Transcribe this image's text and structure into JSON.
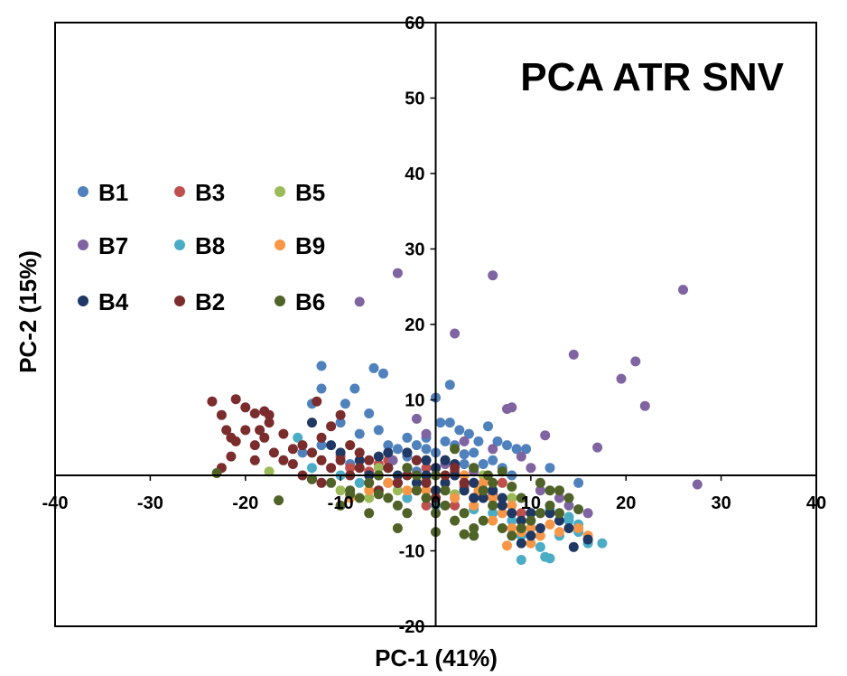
{
  "chart_data": {
    "type": "scatter",
    "title": "PCA ATR SNV",
    "xlabel": "PC-1 (41%)",
    "ylabel": "PC-2 (15%)",
    "xlim": [
      -40,
      40
    ],
    "ylim": [
      -20,
      60
    ],
    "xticks": [
      "-40",
      "-30",
      "-20",
      "-10",
      "0",
      "10",
      "20",
      "30",
      "40"
    ],
    "yticks": [
      "-20",
      "-10",
      "0",
      "10",
      "20",
      "30",
      "40",
      "50",
      "60"
    ],
    "grid": false,
    "legend_position": "left",
    "series": [
      {
        "name": "B1",
        "color": "#4f81bd",
        "points": [
          [
            -12,
            14.5
          ],
          [
            -9.5,
            9.5
          ],
          [
            -8.5,
            11.5
          ],
          [
            -6.5,
            14.2
          ],
          [
            -5.5,
            13.5
          ],
          [
            -7,
            8.2
          ],
          [
            -12,
            11.5
          ],
          [
            -13,
            9.5
          ],
          [
            -10,
            7
          ],
          [
            -8,
            5.5
          ],
          [
            -6,
            6
          ],
          [
            -5,
            4
          ],
          [
            -4,
            3.5
          ],
          [
            -3,
            5
          ],
          [
            -2,
            4
          ],
          [
            -1,
            3.5
          ],
          [
            0,
            10.3
          ],
          [
            1.5,
            12
          ],
          [
            0.5,
            7
          ],
          [
            1.5,
            7
          ],
          [
            2.5,
            6
          ],
          [
            3.5,
            5.5
          ],
          [
            4.5,
            4.5
          ],
          [
            5.5,
            6.5
          ],
          [
            6.5,
            4.5
          ],
          [
            7.5,
            4
          ],
          [
            8.5,
            3.5
          ],
          [
            9.5,
            3.5
          ],
          [
            -3,
            2.5
          ],
          [
            -1,
            2
          ],
          [
            1,
            2
          ],
          [
            3,
            1.5
          ],
          [
            5,
            1.5
          ],
          [
            7,
            1
          ],
          [
            12,
            1
          ],
          [
            8,
            0
          ],
          [
            15,
            -1
          ],
          [
            -12,
            4
          ],
          [
            -14,
            3
          ],
          [
            -9,
            1.5
          ],
          [
            -7,
            0
          ],
          [
            -5,
            -1
          ],
          [
            -2,
            0.5
          ],
          [
            0,
            3
          ],
          [
            2,
            4
          ],
          [
            4,
            3
          ],
          [
            6,
            2
          ],
          [
            -1,
            5
          ],
          [
            1,
            4.5
          ],
          [
            3,
            2.8
          ]
        ]
      },
      {
        "name": "B3",
        "color": "#c0504d",
        "points": [
          [
            -10,
            2.5
          ],
          [
            -9,
            1
          ],
          [
            -7,
            0.5
          ],
          [
            -5,
            2
          ],
          [
            -4,
            -1
          ],
          [
            -2,
            -2
          ],
          [
            -1,
            1
          ],
          [
            0,
            -2
          ],
          [
            1,
            -1
          ],
          [
            2,
            0.5
          ],
          [
            3,
            -1.5
          ],
          [
            4,
            -3
          ],
          [
            5,
            -2
          ],
          [
            6,
            -4
          ],
          [
            7,
            -1
          ],
          [
            8,
            -3
          ],
          [
            9,
            -5
          ],
          [
            -1,
            -4
          ],
          [
            -3,
            -3
          ],
          [
            1,
            2
          ],
          [
            -6,
            1.5
          ],
          [
            4,
            1
          ],
          [
            6,
            -2.5
          ],
          [
            2,
            -4
          ]
        ]
      },
      {
        "name": "B5",
        "color": "#9bbb59",
        "points": [
          [
            -17.5,
            0.5
          ],
          [
            -13,
            3
          ],
          [
            -12,
            2
          ],
          [
            -9,
            4
          ],
          [
            -8,
            3
          ],
          [
            -6,
            1
          ],
          [
            -4,
            -2
          ],
          [
            -2,
            -1
          ],
          [
            0,
            -3
          ],
          [
            1,
            -2
          ],
          [
            3,
            -1
          ],
          [
            5,
            0
          ],
          [
            6,
            -2
          ],
          [
            8,
            -3
          ],
          [
            -10,
            -2
          ],
          [
            -7,
            -3
          ],
          [
            -1,
            -0.5
          ],
          [
            2,
            -2.5
          ]
        ]
      },
      {
        "name": "B7",
        "color": "#8064a2",
        "points": [
          [
            -8,
            23
          ],
          [
            -4,
            26.8
          ],
          [
            2,
            18.8
          ],
          [
            6,
            26.5
          ],
          [
            26,
            24.6
          ],
          [
            21,
            15.1
          ],
          [
            14.5,
            16
          ],
          [
            19.5,
            12.8
          ],
          [
            22,
            9.2
          ],
          [
            17,
            3.7
          ],
          [
            11.5,
            5.3
          ],
          [
            8,
            9
          ],
          [
            7.5,
            8.8
          ],
          [
            3,
            4.5
          ],
          [
            -2,
            7.5
          ],
          [
            -1,
            5.5
          ],
          [
            27.5,
            -1.2
          ],
          [
            13,
            -3
          ],
          [
            10,
            1
          ],
          [
            1,
            1.5
          ],
          [
            -3,
            3
          ],
          [
            -4.5,
            2
          ],
          [
            6,
            3.5
          ],
          [
            9,
            2.5
          ],
          [
            11,
            -2
          ],
          [
            14,
            -4
          ],
          [
            16,
            -5
          ],
          [
            4,
            0.5
          ]
        ]
      },
      {
        "name": "B8",
        "color": "#4bacc6",
        "points": [
          [
            -14.5,
            5
          ],
          [
            -13,
            1
          ],
          [
            -10,
            0
          ],
          [
            -8,
            -1
          ],
          [
            -6,
            -2
          ],
          [
            -3,
            -3
          ],
          [
            0,
            -4
          ],
          [
            2,
            -3
          ],
          [
            4,
            -4.5
          ],
          [
            6,
            -5
          ],
          [
            8,
            -6
          ],
          [
            9,
            -8
          ],
          [
            10,
            -7
          ],
          [
            11,
            -9.5
          ],
          [
            12,
            -11
          ],
          [
            13,
            -8
          ],
          [
            14,
            -6
          ],
          [
            15,
            -7.5
          ],
          [
            16,
            -9
          ],
          [
            17.5,
            -9
          ],
          [
            9,
            -11.2
          ],
          [
            11.5,
            -10.8
          ],
          [
            7,
            -4
          ],
          [
            3,
            -2
          ],
          [
            -1,
            -1
          ],
          [
            12,
            -4.5
          ],
          [
            14,
            -5.5
          ],
          [
            15,
            -6.5
          ],
          [
            10,
            -5
          ],
          [
            5,
            -3
          ]
        ]
      },
      {
        "name": "B9",
        "color": "#f79646",
        "points": [
          [
            -9,
            -3
          ],
          [
            -7,
            -2
          ],
          [
            -5,
            -1
          ],
          [
            -3,
            -2
          ],
          [
            -1,
            -2
          ],
          [
            1,
            -1
          ],
          [
            2,
            -3
          ],
          [
            3,
            -2
          ],
          [
            4,
            -4
          ],
          [
            5,
            -1
          ],
          [
            6,
            -3
          ],
          [
            7,
            -5
          ],
          [
            8,
            -4
          ],
          [
            9,
            -6
          ],
          [
            10,
            -7
          ],
          [
            11,
            -8
          ],
          [
            12,
            -6.5
          ],
          [
            13,
            -7.5
          ],
          [
            15,
            -7
          ],
          [
            16,
            -8
          ],
          [
            7.5,
            -9.3
          ],
          [
            10,
            -9
          ],
          [
            9,
            -7.5
          ],
          [
            11,
            -5
          ],
          [
            -2,
            0
          ],
          [
            0,
            1
          ],
          [
            3,
            0
          ],
          [
            4.5,
            -2
          ],
          [
            6,
            -6
          ],
          [
            8,
            -7
          ]
        ]
      },
      {
        "name": "B4",
        "color": "#1f3864",
        "points": [
          [
            -13,
            7
          ],
          [
            -11,
            4
          ],
          [
            -10,
            3
          ],
          [
            -8,
            2
          ],
          [
            -6,
            2.5
          ],
          [
            -5,
            1
          ],
          [
            -4,
            0
          ],
          [
            -3,
            1
          ],
          [
            -2,
            -1
          ],
          [
            -1,
            0
          ],
          [
            0,
            1
          ],
          [
            1,
            -1
          ],
          [
            2,
            0
          ],
          [
            3,
            -2
          ],
          [
            4,
            -1
          ],
          [
            5,
            -3
          ],
          [
            6,
            -2
          ],
          [
            7,
            -4
          ],
          [
            8,
            -5
          ],
          [
            9,
            -6
          ],
          [
            10,
            -8
          ],
          [
            11,
            -7
          ],
          [
            12,
            -5
          ],
          [
            13,
            -6
          ],
          [
            14,
            -7
          ],
          [
            14.5,
            -9.5
          ],
          [
            16,
            -8.5
          ],
          [
            9,
            -9
          ],
          [
            7,
            -3
          ],
          [
            -5,
            3
          ],
          [
            -3,
            3
          ],
          [
            -1,
            2
          ],
          [
            1,
            2
          ],
          [
            -7,
            0
          ],
          [
            -4,
            -1
          ],
          [
            2,
            1.5
          ],
          [
            -2,
            2
          ],
          [
            0,
            -2
          ],
          [
            4,
            -3
          ],
          [
            10,
            -5
          ]
        ]
      },
      {
        "name": "B2",
        "color": "#7b2c2c",
        "points": [
          [
            -23.5,
            9.8
          ],
          [
            -22.5,
            8
          ],
          [
            -21,
            10.1
          ],
          [
            -20,
            9
          ],
          [
            -19,
            8.2
          ],
          [
            -18,
            8.5
          ],
          [
            -17.5,
            8
          ],
          [
            -17.5,
            7
          ],
          [
            -16,
            5.5
          ],
          [
            -15,
            3.5
          ],
          [
            -14,
            4
          ],
          [
            -13,
            3
          ],
          [
            -12,
            2
          ],
          [
            -11,
            1
          ],
          [
            -10,
            2
          ],
          [
            -9,
            0
          ],
          [
            -8,
            1
          ],
          [
            -7,
            -1
          ],
          [
            -6,
            0
          ],
          [
            -22,
            6
          ],
          [
            -21.5,
            5
          ],
          [
            -21,
            4.5
          ],
          [
            -20,
            6
          ],
          [
            -19,
            4
          ],
          [
            -18,
            5
          ],
          [
            -17,
            3
          ],
          [
            -16,
            2
          ],
          [
            -15,
            1.5
          ],
          [
            -14,
            0
          ],
          [
            -13,
            -0.5
          ],
          [
            -12,
            -1
          ],
          [
            -22.5,
            1
          ],
          [
            -21.5,
            2.5
          ],
          [
            -19,
            2
          ],
          [
            -18.5,
            6
          ],
          [
            -12.5,
            9.8
          ],
          [
            -10,
            8
          ],
          [
            -11,
            6.5
          ],
          [
            -12,
            5
          ],
          [
            -9,
            4
          ],
          [
            -8,
            3
          ],
          [
            -7,
            2
          ],
          [
            -6,
            -2
          ],
          [
            -5,
            1
          ],
          [
            -4,
            -1
          ],
          [
            -3,
            0
          ],
          [
            -2,
            2
          ],
          [
            -1,
            -1
          ],
          [
            1,
            0
          ],
          [
            2,
            1
          ],
          [
            3,
            -1
          ],
          [
            0,
            -3
          ]
        ]
      },
      {
        "name": "B6",
        "color": "#4f6228",
        "points": [
          [
            -23,
            0.3
          ],
          [
            -16.5,
            -3.3
          ],
          [
            -13,
            -0.5
          ],
          [
            -11,
            -1
          ],
          [
            -9,
            -2
          ],
          [
            -8,
            -3
          ],
          [
            -7,
            -1
          ],
          [
            -6,
            -2.5
          ],
          [
            -5,
            -3
          ],
          [
            -4,
            -4
          ],
          [
            -3,
            -5
          ],
          [
            -2,
            -2
          ],
          [
            -1,
            -3
          ],
          [
            0,
            -5
          ],
          [
            1,
            -4
          ],
          [
            2,
            -6
          ],
          [
            3,
            -5
          ],
          [
            4,
            -7
          ],
          [
            5,
            -6
          ],
          [
            6,
            -4
          ],
          [
            7,
            -7
          ],
          [
            8,
            -8
          ],
          [
            9,
            -7
          ],
          [
            10,
            -6
          ],
          [
            11,
            -5
          ],
          [
            12,
            -4
          ],
          [
            13,
            -5
          ],
          [
            14,
            -3
          ],
          [
            15,
            -4.5
          ],
          [
            -4,
            -7
          ],
          [
            0,
            -7.5
          ],
          [
            3,
            -7.8
          ],
          [
            4,
            -8
          ],
          [
            5,
            -2
          ],
          [
            6,
            -1
          ],
          [
            7,
            0.5
          ],
          [
            8,
            -1.5
          ],
          [
            -10,
            -4
          ],
          [
            -9,
            -2.5
          ],
          [
            -2,
            0
          ],
          [
            1,
            -2
          ],
          [
            2,
            3.5
          ],
          [
            4,
            1
          ],
          [
            5.5,
            0
          ],
          [
            9,
            -3
          ],
          [
            11,
            -1
          ],
          [
            12,
            -2
          ],
          [
            -6,
            0
          ],
          [
            -3,
            1
          ],
          [
            0,
            0
          ],
          [
            13,
            -2
          ],
          [
            -7,
            -5
          ]
        ]
      }
    ]
  }
}
